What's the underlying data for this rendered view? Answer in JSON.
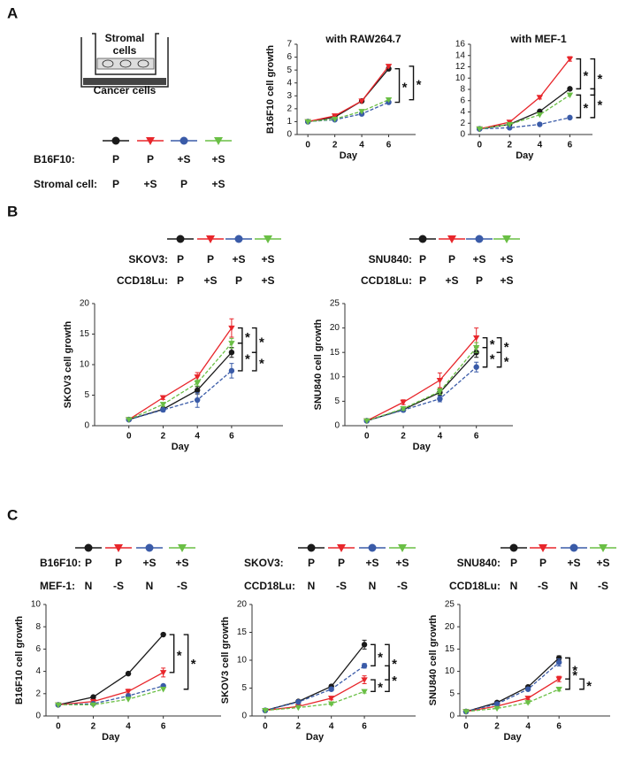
{
  "panel_labels": [
    "A",
    "B",
    "C"
  ],
  "schematic": {
    "top": [
      "Stromal",
      "cells"
    ],
    "bottom": "Cancer cells"
  },
  "legend_tables": [
    {
      "rows": [
        {
          "label": "B16F10:",
          "cells": [
            "P",
            "P",
            "+S",
            "+S"
          ]
        },
        {
          "label": "Stromal cell:",
          "cells": [
            "P",
            "+S",
            "P",
            "+S"
          ]
        }
      ]
    },
    {
      "rows": [
        {
          "label": "SKOV3:",
          "cells": [
            "P",
            "P",
            "+S",
            "+S"
          ]
        },
        {
          "label": "CCD18Lu:",
          "cells": [
            "P",
            "+S",
            "P",
            "+S"
          ]
        }
      ]
    },
    {
      "rows": [
        {
          "label": "SNU840:",
          "cells": [
            "P",
            "P",
            "+S",
            "+S"
          ]
        },
        {
          "label": "CCD18Lu:",
          "cells": [
            "P",
            "+S",
            "P",
            "+S"
          ]
        }
      ]
    },
    {
      "rows": [
        {
          "label": "B16F10:",
          "cells": [
            "P",
            "P",
            "+S",
            "+S"
          ]
        },
        {
          "label": "MEF-1:",
          "cells": [
            "N",
            "-S",
            "N",
            "-S"
          ]
        }
      ]
    },
    {
      "rows": [
        {
          "label": "SKOV3:",
          "cells": [
            "P",
            "P",
            "+S",
            "+S"
          ]
        },
        {
          "label": "CCD18Lu:",
          "cells": [
            "N",
            "-S",
            "N",
            "-S"
          ]
        }
      ]
    },
    {
      "rows": [
        {
          "label": "SNU840:",
          "cells": [
            "P",
            "P",
            "+S",
            "+S"
          ]
        },
        {
          "label": "CCD18Lu:",
          "cells": [
            "N",
            "-S",
            "N",
            "-S"
          ]
        }
      ]
    }
  ],
  "chart_data": [
    {
      "type": "line",
      "title": "with RAW264.7",
      "y_label": "B16F10 cell growth",
      "x_label": "Day",
      "x": [
        0,
        2,
        4,
        6
      ],
      "xlim": [
        -0.8,
        8
      ],
      "xticks": [
        0,
        2,
        4,
        6
      ],
      "ylim": [
        0,
        7
      ],
      "yticks": [
        0,
        1,
        2,
        3,
        4,
        5,
        6,
        7
      ],
      "series": [
        {
          "color": "#1a1a1a",
          "marker": "circle",
          "dashed": false,
          "values": [
            1,
            1.35,
            2.6,
            5.1
          ]
        },
        {
          "color": "#e8262b",
          "marker": "triangle",
          "dashed": false,
          "values": [
            1,
            1.45,
            2.6,
            5.3
          ]
        },
        {
          "color": "#3a5ba8",
          "marker": "circle",
          "dashed": true,
          "values": [
            1,
            1.15,
            1.6,
            2.5
          ]
        },
        {
          "color": "#6abf45",
          "marker": "triangle",
          "dashed": true,
          "values": [
            1,
            1.2,
            1.8,
            2.7
          ]
        }
      ],
      "significance": [
        {
          "pair": [
            0,
            2
          ],
          "label": "*"
        },
        {
          "pair": [
            1,
            3
          ],
          "label": "*"
        }
      ]
    },
    {
      "type": "line",
      "title": "with MEF-1",
      "x_label": "Day",
      "x": [
        0,
        2,
        4,
        6
      ],
      "xlim": [
        -0.6,
        7.5
      ],
      "xticks": [
        0,
        2,
        4,
        6
      ],
      "ylim": [
        0,
        16
      ],
      "yticks": [
        0,
        2,
        4,
        6,
        8,
        10,
        12,
        14,
        16
      ],
      "series": [
        {
          "color": "#1a1a1a",
          "marker": "circle",
          "dashed": false,
          "values": [
            1,
            1.8,
            4.1,
            8.1
          ]
        },
        {
          "color": "#e8262b",
          "marker": "triangle",
          "dashed": false,
          "values": [
            1,
            2.2,
            6.6,
            13.4
          ],
          "errors": [
            null,
            null,
            0.3,
            0.4
          ]
        },
        {
          "color": "#3a5ba8",
          "marker": "circle",
          "dashed": true,
          "values": [
            1,
            1.2,
            1.8,
            3.0
          ]
        },
        {
          "color": "#6abf45",
          "marker": "triangle",
          "dashed": true,
          "values": [
            1,
            1.8,
            3.5,
            7.0
          ]
        }
      ],
      "significance": [
        {
          "pair": [
            1,
            0
          ],
          "label": "*"
        },
        {
          "pair": [
            1,
            3
          ],
          "label": "*"
        },
        {
          "pair": [
            3,
            2
          ],
          "label": "*"
        },
        {
          "pair": [
            0,
            2
          ],
          "label": "*"
        }
      ]
    },
    {
      "type": "line",
      "y_label": "SKOV3 cell growth",
      "x_label": "Day",
      "x": [
        0,
        2,
        4,
        6
      ],
      "xlim": [
        -2,
        9
      ],
      "xticks": [
        0,
        2,
        4,
        6
      ],
      "ylim": [
        0,
        20
      ],
      "yticks": [
        0,
        5,
        10,
        15,
        20
      ],
      "series": [
        {
          "color": "#1a1a1a",
          "marker": "circle",
          "dashed": false,
          "values": [
            1,
            2.7,
            5.8,
            12
          ],
          "errors": [
            null,
            0.3,
            0.6,
            0.8
          ]
        },
        {
          "color": "#e8262b",
          "marker": "triangle",
          "dashed": false,
          "values": [
            1,
            4.6,
            8,
            16
          ],
          "errors": [
            null,
            0.3,
            0.7,
            1.5
          ]
        },
        {
          "color": "#3a5ba8",
          "marker": "circle",
          "dashed": true,
          "values": [
            1,
            2.6,
            4.2,
            9
          ],
          "errors": [
            null,
            0.3,
            1.2,
            1.2
          ]
        },
        {
          "color": "#6abf45",
          "marker": "triangle",
          "dashed": true,
          "values": [
            1,
            3.5,
            7,
            13.5
          ],
          "errors": [
            null,
            0.3,
            0.5,
            0.8
          ]
        }
      ],
      "significance": [
        {
          "pair": [
            1,
            3
          ],
          "label": "*"
        },
        {
          "pair": [
            1,
            0
          ],
          "label": "*"
        },
        {
          "pair": [
            3,
            2
          ],
          "label": "*"
        },
        {
          "pair": [
            0,
            2
          ],
          "label": "*"
        }
      ]
    },
    {
      "type": "line",
      "y_label": "SNU840 cell growth",
      "x_label": "Day",
      "x": [
        0,
        2,
        4,
        6
      ],
      "xlim": [
        -1.2,
        8
      ],
      "xticks": [
        0,
        2,
        4,
        6
      ],
      "ylim": [
        0,
        25
      ],
      "yticks": [
        0,
        5,
        10,
        15,
        20,
        25
      ],
      "series": [
        {
          "color": "#1a1a1a",
          "marker": "circle",
          "dashed": false,
          "values": [
            1,
            3.3,
            6.8,
            15
          ],
          "errors": [
            null,
            0.3,
            0.6,
            1.0
          ]
        },
        {
          "color": "#e8262b",
          "marker": "triangle",
          "dashed": false,
          "values": [
            1,
            4.8,
            9.3,
            18
          ],
          "errors": [
            null,
            0.5,
            1.5,
            2.0
          ]
        },
        {
          "color": "#3a5ba8",
          "marker": "circle",
          "dashed": true,
          "values": [
            1,
            3.2,
            5.5,
            12
          ],
          "errors": [
            null,
            0.3,
            0.6,
            1.0
          ]
        },
        {
          "color": "#6abf45",
          "marker": "triangle",
          "dashed": true,
          "values": [
            1,
            3.5,
            7,
            16
          ],
          "errors": [
            null,
            0.3,
            0.6,
            1.0
          ]
        }
      ],
      "significance": [
        {
          "pair": [
            1,
            3
          ],
          "label": "*"
        },
        {
          "pair": [
            1,
            0
          ],
          "label": "*"
        },
        {
          "pair": [
            3,
            2
          ],
          "label": "*"
        },
        {
          "pair": [
            0,
            2
          ],
          "label": "*"
        }
      ]
    },
    {
      "type": "line",
      "y_label": "B16F10 cell growth",
      "x_label": "Day",
      "x": [
        0,
        2,
        4,
        6
      ],
      "xlim": [
        -0.7,
        9.3
      ],
      "xticks": [
        0,
        2,
        4,
        6
      ],
      "ylim": [
        0,
        10
      ],
      "yticks": [
        0,
        2,
        4,
        6,
        8,
        10
      ],
      "series": [
        {
          "color": "#1a1a1a",
          "marker": "circle",
          "dashed": false,
          "values": [
            1,
            1.7,
            3.8,
            7.3
          ]
        },
        {
          "color": "#e8262b",
          "marker": "triangle",
          "dashed": false,
          "values": [
            1,
            1.3,
            2.2,
            3.9
          ],
          "errors": [
            null,
            null,
            0.2,
            0.4
          ]
        },
        {
          "color": "#3a5ba8",
          "marker": "circle",
          "dashed": true,
          "values": [
            1,
            1.1,
            1.8,
            2.7
          ]
        },
        {
          "color": "#6abf45",
          "marker": "triangle",
          "dashed": true,
          "values": [
            1,
            1.0,
            1.5,
            2.4
          ]
        }
      ],
      "significance": [
        {
          "pair": [
            0,
            1
          ],
          "label": "*"
        },
        {
          "pair": [
            0,
            3
          ],
          "label": "*"
        }
      ]
    },
    {
      "type": "line",
      "y_label": "SKOV3 cell growth",
      "x_label": "Day",
      "x": [
        0,
        2,
        4,
        6
      ],
      "xlim": [
        -0.8,
        9.1
      ],
      "xticks": [
        0,
        2,
        4,
        6
      ],
      "ylim": [
        0,
        20
      ],
      "yticks": [
        0,
        5,
        10,
        15,
        20
      ],
      "series": [
        {
          "color": "#1a1a1a",
          "marker": "circle",
          "dashed": false,
          "values": [
            1,
            2.6,
            5.3,
            12.8
          ],
          "errors": [
            null,
            null,
            0.3,
            0.8
          ]
        },
        {
          "color": "#e8262b",
          "marker": "triangle",
          "dashed": false,
          "values": [
            1,
            1.7,
            3.2,
            6.5
          ],
          "errors": [
            null,
            null,
            0.3,
            0.7
          ]
        },
        {
          "color": "#3a5ba8",
          "marker": "circle",
          "dashed": true,
          "values": [
            1,
            2.5,
            4.8,
            9
          ],
          "errors": [
            null,
            null,
            0.3,
            0.4
          ]
        },
        {
          "color": "#6abf45",
          "marker": "triangle",
          "dashed": true,
          "values": [
            1,
            1.5,
            2.2,
            4.4
          ],
          "errors": [
            null,
            null,
            0.2,
            0.3
          ]
        }
      ],
      "significance": [
        {
          "pair": [
            0,
            2
          ],
          "label": "*"
        },
        {
          "pair": [
            0,
            1
          ],
          "label": "*"
        },
        {
          "pair": [
            1,
            3
          ],
          "label": "*"
        },
        {
          "pair": [
            2,
            3
          ],
          "label": "*"
        }
      ]
    },
    {
      "type": "line",
      "y_label": "SNU840 cell growth",
      "x_label": "Day",
      "x": [
        0,
        2,
        4,
        6
      ],
      "xlim": [
        -0.4,
        9.3
      ],
      "xticks": [
        0,
        2,
        4,
        6
      ],
      "ylim": [
        0,
        25
      ],
      "yticks": [
        0,
        5,
        10,
        15,
        20,
        25
      ],
      "series": [
        {
          "color": "#1a1a1a",
          "marker": "circle",
          "dashed": false,
          "values": [
            1,
            3,
            6.5,
            13
          ],
          "errors": [
            null,
            null,
            0.3,
            0.5
          ]
        },
        {
          "color": "#e8262b",
          "marker": "triangle",
          "dashed": false,
          "values": [
            1,
            2.2,
            4,
            8.3
          ],
          "errors": [
            null,
            null,
            0.3,
            0.6
          ]
        },
        {
          "color": "#3a5ba8",
          "marker": "circle",
          "dashed": true,
          "values": [
            1,
            2.7,
            6,
            12
          ],
          "errors": [
            null,
            null,
            0.3,
            0.8
          ]
        },
        {
          "color": "#6abf45",
          "marker": "triangle",
          "dashed": true,
          "values": [
            1,
            1.7,
            3,
            6
          ],
          "errors": [
            null,
            null,
            0.2,
            0.4
          ]
        }
      ],
      "significance": [
        {
          "pair": [
            0,
            1
          ],
          "label": "*"
        },
        {
          "pair": [
            1,
            3
          ],
          "label": "*"
        },
        {
          "pair": [
            0,
            3
          ],
          "label": "*"
        }
      ]
    }
  ]
}
